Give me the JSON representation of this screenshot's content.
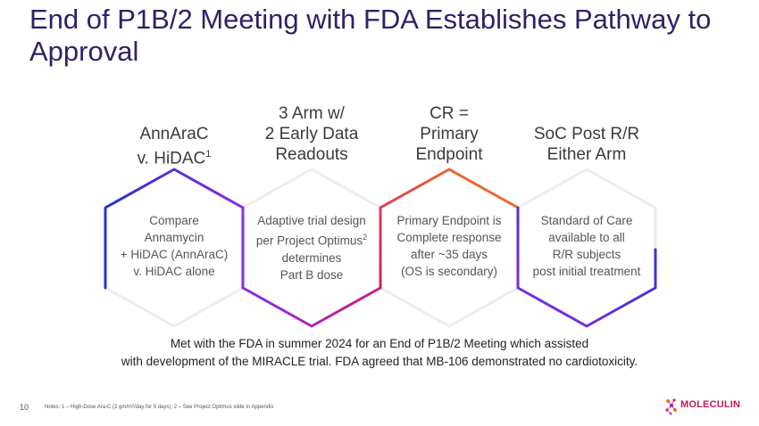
{
  "title": "End of P1B/2 Meeting with FDA Establishes Pathway to Approval",
  "columns": [
    {
      "heading_lines": [
        "AnnAraC",
        "v. HiDAC"
      ],
      "heading_sup": "1",
      "body_lines": [
        "Compare",
        "Annamycin",
        "+ HiDAC (AnnAraC)",
        "v. HiDAC alone"
      ]
    },
    {
      "heading_lines": [
        "3 Arm w/",
        "2 Early Data",
        "Readouts"
      ],
      "body_lines": [
        "Adaptive trial design",
        "per Project Optimus",
        "determines",
        "Part B dose"
      ],
      "body_sup": "2"
    },
    {
      "heading_lines": [
        "CR =",
        "Primary",
        "Endpoint"
      ],
      "body_lines": [
        "Primary Endpoint is",
        "Complete response",
        "after ~35 days",
        "(OS is secondary)"
      ]
    },
    {
      "heading_lines": [
        "SoC Post R/R",
        "Either Arm"
      ],
      "body_lines": [
        "Standard of Care",
        "available to all",
        "R/R subjects",
        "post initial treatment"
      ]
    }
  ],
  "summary_lines": [
    "Met with the FDA in summer 2024 for an End of P1B/2 Meeting which assisted",
    "with development of the MIRACLE trial. FDA agreed that MB-106 demonstrated no cardiotoxicity."
  ],
  "page_number": "10",
  "notes": "Notes: 1 – High-Dose Ara-C (2 gm/m²/day for 5 days); 2 – See Project Optimus slide in Appendix",
  "logo_text": "MOLECULIN",
  "colors": {
    "title": "#2a2466",
    "blue": "#2233cc",
    "purple": "#8a2be2",
    "magenta": "#c81e8c",
    "orange": "#f07a20",
    "light_hex": "#ececec"
  }
}
